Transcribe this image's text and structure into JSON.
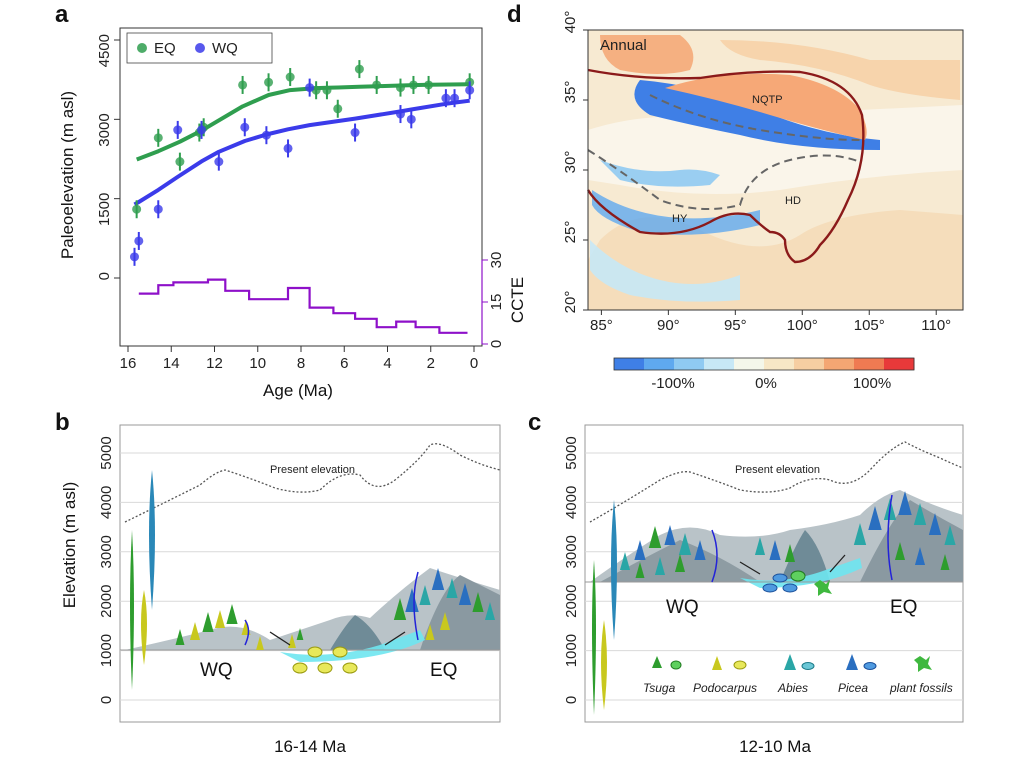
{
  "panels": {
    "a": "a",
    "b": "b",
    "c": "c",
    "d": "d"
  },
  "chart_data": [
    {
      "type": "scatter",
      "panel": "a",
      "xlabel": "Age (Ma)",
      "ylabel": "Paleoelevation (m asl)",
      "y2label": "CCTE",
      "xlim": [
        16,
        0
      ],
      "ylim": [
        -1400,
        5000
      ],
      "x_ticks": [
        "16",
        "14",
        "12",
        "10",
        "8",
        "6",
        "4",
        "2",
        "0"
      ],
      "y_ticks": [
        "0",
        "1500",
        "3000",
        "4500"
      ],
      "y2_ticks": [
        "0",
        "15",
        "30"
      ],
      "legend": [
        "EQ",
        "WQ"
      ],
      "legend_position": "top-left",
      "colors": {
        "EQ": "#2f9e4f",
        "WQ": "#3b3bea",
        "CCTE": "#8e10c9"
      },
      "series": [
        {
          "name": "EQ",
          "x": [
            15.6,
            14.6,
            13.6,
            12.7,
            12.5,
            10.7,
            9.5,
            8.5,
            7.3,
            6.8,
            6.3,
            5.3,
            4.5,
            3.4,
            2.8,
            2.1,
            0.2
          ],
          "y": [
            1300,
            2650,
            2200,
            2750,
            2850,
            3650,
            3700,
            3800,
            3550,
            3550,
            3200,
            3950,
            3650,
            3600,
            3650,
            3650,
            3700
          ]
        },
        {
          "name": "WQ",
          "x": [
            15.7,
            15.5,
            14.6,
            13.7,
            12.6,
            11.8,
            10.6,
            9.6,
            8.6,
            7.6,
            5.5,
            3.4,
            2.9,
            1.3,
            0.9,
            0.2
          ],
          "y": [
            400,
            700,
            1300,
            2800,
            2800,
            2200,
            2850,
            2700,
            2450,
            3600,
            2750,
            3100,
            3000,
            3400,
            3400,
            3550
          ]
        },
        {
          "name": "CCTE",
          "step": true,
          "x": [
            15.5,
            14.6,
            13.9,
            12.3,
            11.5,
            10.4,
            8.6,
            7.6,
            6.5,
            5.5,
            4.5,
            3.6,
            2.7,
            1.6,
            0.6
          ],
          "y": [
            18,
            21,
            22,
            23,
            19,
            16,
            20,
            13,
            11,
            9,
            6,
            8,
            6,
            4,
            4
          ]
        }
      ]
    },
    {
      "type": "heatmap",
      "panel": "d",
      "label": "Annual",
      "regions": [
        "NQTP",
        "HD",
        "HY"
      ],
      "x_ticks": [
        "85°",
        "90°",
        "95°",
        "100°",
        "105°",
        "110°"
      ],
      "y_ticks": [
        "40°",
        "35°",
        "30°",
        "25°",
        "20°"
      ],
      "xlim": [
        84,
        112
      ],
      "ylim": [
        20,
        40
      ],
      "colorbar_labels": [
        "-100%",
        "0%",
        "100%"
      ],
      "colorbar_colors": [
        "#3f7fe6",
        "#5fa9ef",
        "#8fcaf2",
        "#c7e8f6",
        "#f4f7ea",
        "#f7e7c6",
        "#f6cea2",
        "#f4a673",
        "#ef7a52",
        "#e8393a"
      ]
    },
    {
      "type": "diagram",
      "panel": "b",
      "ylabel": "Elevation (m asl)",
      "y_ticks": [
        "0",
        "1000",
        "2000",
        "3000",
        "4000",
        "5000"
      ],
      "present_elevation": "Present elevation",
      "left_label": "WQ",
      "right_label": "EQ",
      "caption": "16-14 Ma"
    },
    {
      "type": "diagram",
      "panel": "c",
      "y_ticks": [
        "0",
        "1000",
        "2000",
        "3000",
        "4000",
        "5000"
      ],
      "present_elevation": "Present elevation",
      "left_label": "WQ",
      "right_label": "EQ",
      "caption": "12-10 Ma",
      "legend": [
        "Tsuga",
        "Podocarpus",
        "Abies",
        "Picea",
        "plant fossils"
      ]
    }
  ]
}
